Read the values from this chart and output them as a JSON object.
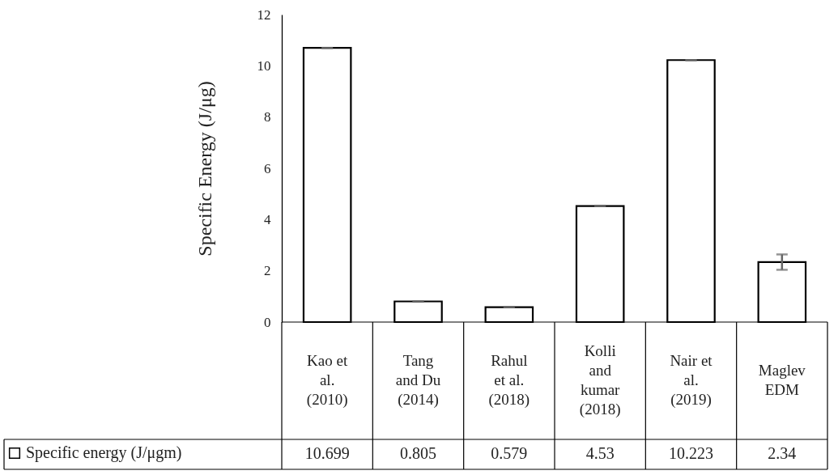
{
  "chart_data": {
    "type": "bar",
    "ylabel": "Specific Energy (J/μg)",
    "categories": [
      "Kao et al. (2010)",
      "Tang and Du (2014)",
      "Rahul et al. (2018)",
      "Kolli and kumar (2018)",
      "Nair et al. (2019)",
      "Maglev EDM"
    ],
    "series": [
      {
        "name": "Specific energy (J/μgm)",
        "color": "#ffffff",
        "values": [
          10.699,
          0.805,
          0.579,
          4.53,
          10.223,
          2.34
        ],
        "errors": [
          0,
          0,
          0,
          0,
          0,
          0.3
        ]
      }
    ],
    "ylim": [
      0,
      12
    ],
    "yticks": [
      0,
      2,
      4,
      6,
      8,
      10,
      12
    ],
    "data_labels": true,
    "legend": "bottom left",
    "grid": false
  }
}
